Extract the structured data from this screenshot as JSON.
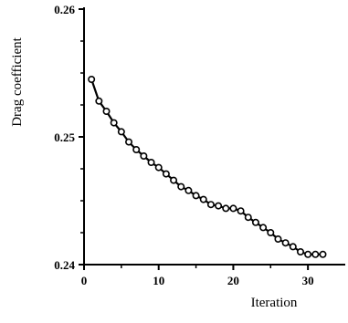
{
  "chart_data": {
    "type": "line",
    "title": "",
    "xlabel": "Iteration",
    "ylabel": "Drag coefficient",
    "xlim": [
      0,
      35
    ],
    "ylim": [
      0.24,
      0.26
    ],
    "x_ticks": [
      0,
      10,
      20,
      30
    ],
    "x_tick_labels": [
      "0",
      "10",
      "20",
      "30"
    ],
    "y_ticks": [
      0.24,
      0.25,
      0.26
    ],
    "y_tick_labels": [
      "0.24",
      "0.25",
      "0.26"
    ],
    "grid": false,
    "legend": "none",
    "marker": "open-circle",
    "line_color": "#000000",
    "series": [
      {
        "x": [
          1,
          2,
          3,
          4,
          5,
          6,
          7,
          8,
          9,
          10,
          11,
          12,
          13,
          14,
          15,
          16,
          17,
          18,
          19,
          20,
          21,
          22,
          23,
          24,
          25,
          26,
          27,
          28,
          29,
          30,
          31,
          32
        ],
        "values": [
          0.2545,
          0.2528,
          0.252,
          0.2511,
          0.2504,
          0.2496,
          0.249,
          0.2485,
          0.248,
          0.2476,
          0.2471,
          0.2466,
          0.2461,
          0.2458,
          0.2454,
          0.2451,
          0.2447,
          0.2446,
          0.2444,
          0.2444,
          0.2442,
          0.2437,
          0.2433,
          0.2429,
          0.2425,
          0.242,
          0.2417,
          0.2414,
          0.241,
          0.2408,
          0.2408,
          0.2408
        ]
      }
    ]
  }
}
